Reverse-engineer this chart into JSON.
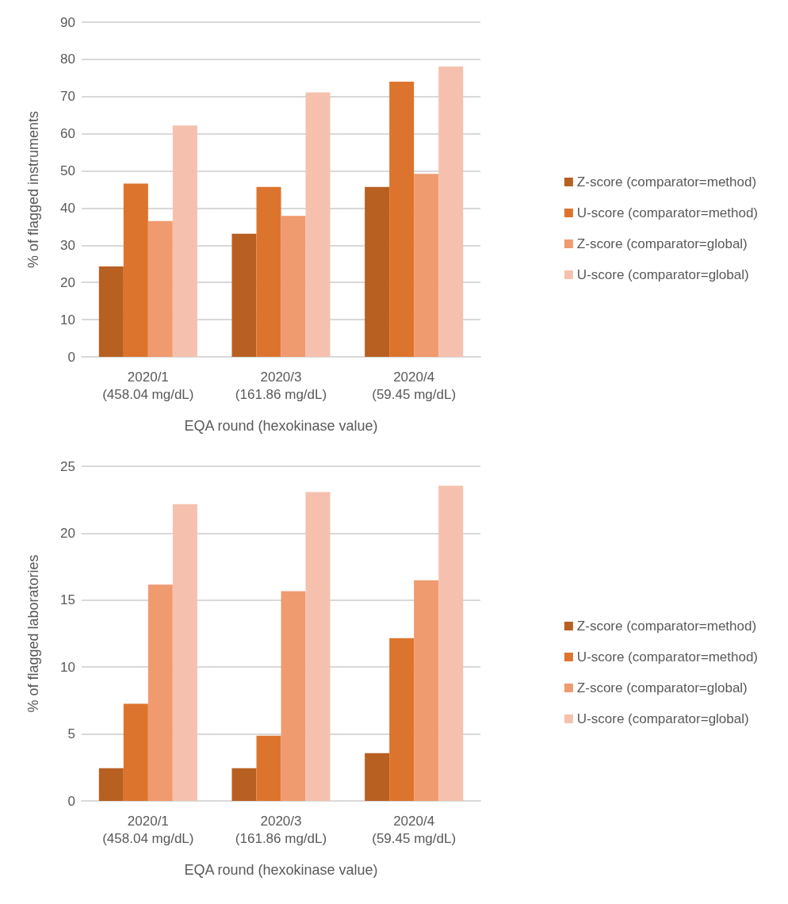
{
  "chart_data": [
    {
      "type": "bar",
      "xlabel": "EQA round (hexokinase value)",
      "ylabel": "% of flagged instruments",
      "categories": [
        "2020/1\n(458.04 mg/dL)",
        "2020/3\n(161.86 mg/dL)",
        "2020/4\n(59.45 mg/dL)"
      ],
      "series": [
        {
          "name": "Z-score (comparator=method)",
          "color": "#b85f22",
          "values": [
            24.3,
            33.1,
            45.7
          ]
        },
        {
          "name": "U-score (comparator=method)",
          "color": "#dd742d",
          "values": [
            46.6,
            45.7,
            74.0
          ]
        },
        {
          "name": "Z-score (comparator=global)",
          "color": "#f09a6f",
          "values": [
            36.5,
            37.9,
            49.2
          ]
        },
        {
          "name": "U-score (comparator=global)",
          "color": "#f5c1ae",
          "values": [
            62.2,
            71.1,
            78.1
          ]
        }
      ],
      "ylim": [
        0,
        90
      ],
      "yticks": [
        0,
        10,
        20,
        30,
        40,
        50,
        60,
        70,
        80,
        90
      ],
      "grid": "y",
      "legend": "right"
    },
    {
      "type": "bar",
      "xlabel": "EQA round (hexokinase value)",
      "ylabel": "% of flagged laboratories",
      "categories": [
        "2020/1\n(458.04 mg/dL)",
        "2020/3\n(161.86 mg/dL)",
        "2020/4\n(59.45 mg/dL)"
      ],
      "series": [
        {
          "name": "Z-score (comparator=method)",
          "color": "#b85f22",
          "values": [
            2.45,
            2.45,
            3.57
          ]
        },
        {
          "name": "U-score (comparator=method)",
          "color": "#dd742d",
          "values": [
            7.26,
            4.87,
            12.16
          ]
        },
        {
          "name": "Z-score (comparator=global)",
          "color": "#f09a6f",
          "values": [
            16.16,
            15.67,
            16.49
          ]
        },
        {
          "name": "U-score (comparator=global)",
          "color": "#f5c1ae",
          "values": [
            22.17,
            23.07,
            23.55
          ]
        }
      ],
      "ylim": [
        0,
        25
      ],
      "yticks": [
        0,
        5,
        10,
        15,
        20,
        25
      ],
      "grid": "y",
      "legend": "right"
    }
  ]
}
